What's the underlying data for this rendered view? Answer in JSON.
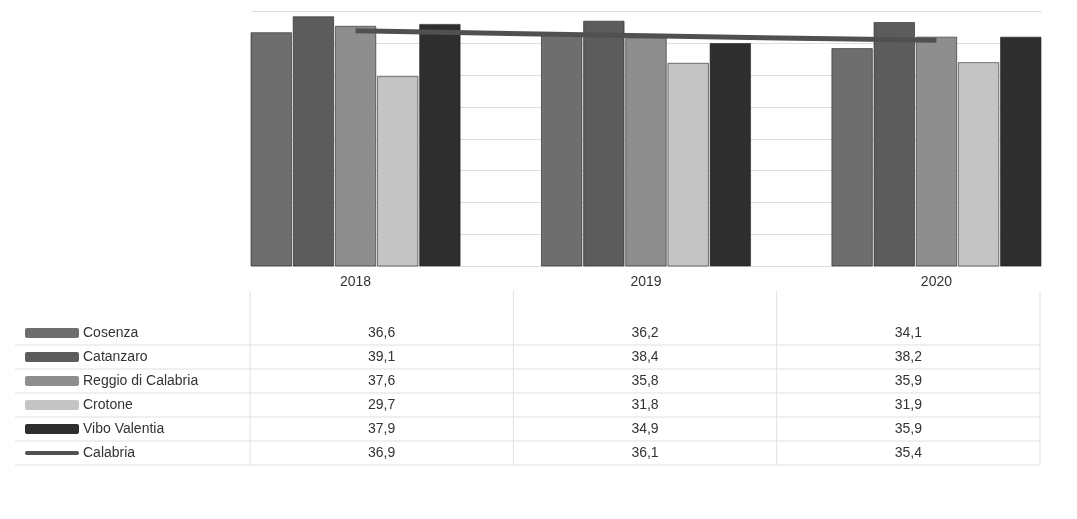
{
  "chart_data": {
    "type": "bar",
    "categories": [
      "2018",
      "2019",
      "2020"
    ],
    "series": [
      {
        "name": "Cosenza",
        "color": "#6e6e6e",
        "values": [
          36.6,
          36.2,
          34.1
        ],
        "value_labels": [
          "36,6",
          "36,2",
          "34,1"
        ]
      },
      {
        "name": "Catanzaro",
        "color": "#5c5c5c",
        "values": [
          39.1,
          38.4,
          38.2
        ],
        "value_labels": [
          "39,1",
          "38,4",
          "38,2"
        ]
      },
      {
        "name": "Reggio di Calabria",
        "color": "#8e8e8e",
        "values": [
          37.6,
          35.8,
          35.9
        ],
        "value_labels": [
          "37,6",
          "35,8",
          "35,9"
        ]
      },
      {
        "name": "Crotone",
        "color": "#c4c4c4",
        "values": [
          29.7,
          31.8,
          31.9
        ],
        "value_labels": [
          "29,7",
          "31,8",
          "31,9"
        ]
      },
      {
        "name": "Vibo Valentia",
        "color": "#2e2e2e",
        "values": [
          37.9,
          34.9,
          35.9
        ],
        "value_labels": [
          "37,9",
          "34,9",
          "35,9"
        ]
      },
      {
        "name": "Calabria",
        "type": "line",
        "color": "#505050",
        "values": [
          36.9,
          36.1,
          35.4
        ],
        "value_labels": [
          "36,9",
          "36,1",
          "35,4"
        ]
      }
    ],
    "tick_labels": "x",
    "grid": "y",
    "legend": "bottom",
    "marker": "none",
    "line_style": "solid"
  }
}
